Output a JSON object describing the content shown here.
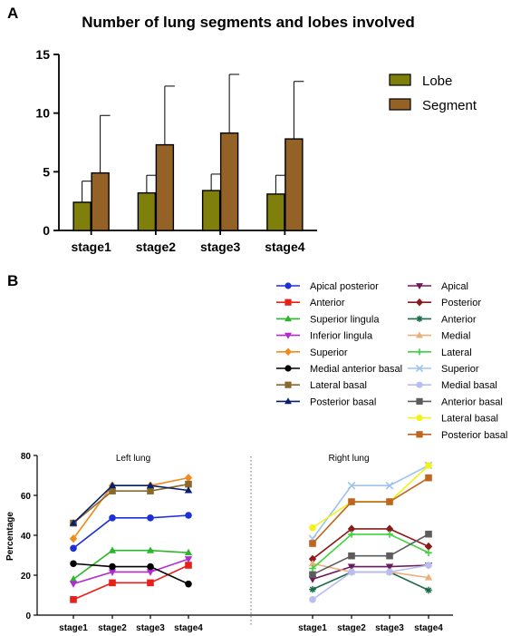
{
  "panel_labels": {
    "a": "A",
    "b": "B"
  },
  "chart_data": [
    {
      "type": "bar",
      "title": "Number of lung segments and lobes involved",
      "xlabel": "",
      "ylabel": "",
      "ylim": [
        0,
        15
      ],
      "yticks": [
        0,
        5,
        10,
        15
      ],
      "categories": [
        "stage1",
        "stage2",
        "stage3",
        "stage4"
      ],
      "legend_position": "right",
      "series": [
        {
          "name": "Lobe",
          "color": "#7f7f0b",
          "values": [
            2.4,
            3.2,
            3.4,
            3.1
          ],
          "error": [
            1.8,
            1.5,
            1.4,
            1.6
          ]
        },
        {
          "name": "Segment",
          "color": "#946127",
          "values": [
            4.9,
            7.3,
            8.3,
            7.8
          ],
          "error": [
            4.9,
            5.0,
            5.0,
            4.9
          ]
        }
      ]
    },
    {
      "type": "line",
      "ylabel": "Percentage",
      "ylim": [
        0,
        80
      ],
      "yticks": [
        0,
        20,
        40,
        60,
        80
      ],
      "grid": false,
      "legend_position": "top",
      "groups": [
        {
          "title": "Left lung",
          "categories": [
            "stage1",
            "stage2",
            "stage3",
            "stage4"
          ],
          "series": [
            {
              "name": "Apical posterior",
              "color": "#1f2fd8",
              "marker": "circle",
              "values": [
                33.5,
                48.7,
                48.7,
                50
              ]
            },
            {
              "name": "Anterior",
              "color": "#e8201a",
              "marker": "square",
              "values": [
                7.8,
                16.2,
                16.2,
                25
              ]
            },
            {
              "name": "Superior lingula",
              "color": "#2db62d",
              "marker": "triangle-up",
              "values": [
                18,
                32.4,
                32.4,
                31.3
              ]
            },
            {
              "name": "Inferior lingula",
              "color": "#b12bd1",
              "marker": "triangle-down",
              "values": [
                15.7,
                21.6,
                21.6,
                28.1
              ]
            },
            {
              "name": "Superior",
              "color": "#f28a1c",
              "marker": "diamond",
              "values": [
                38.3,
                64.9,
                64.9,
                68.8
              ]
            },
            {
              "name": "Medial anterior basal",
              "color": "#000000",
              "marker": "circle",
              "values": [
                25.8,
                24.3,
                24.3,
                15.6
              ]
            },
            {
              "name": "Lateral basal",
              "color": "#8a6a2c",
              "marker": "square",
              "values": [
                46.1,
                62.2,
                62.2,
                65.6
              ]
            },
            {
              "name": "Posterior basal",
              "color": "#0a1f6b",
              "marker": "triangle-up",
              "values": [
                46.1,
                64.9,
                64.9,
                62.5
              ]
            }
          ]
        },
        {
          "title": "Right lung",
          "categories": [
            "stage1",
            "stage2",
            "stage3",
            "stage4"
          ],
          "series": [
            {
              "name": "Apical",
              "color": "#6b1a5e",
              "marker": "triangle-down",
              "values": [
                18,
                24.3,
                24.3,
                25
              ]
            },
            {
              "name": "Posterior",
              "color": "#8c1a1a",
              "marker": "diamond",
              "values": [
                28.1,
                43.2,
                43.2,
                34.4
              ]
            },
            {
              "name": "Anterior",
              "color": "#1c6b4a",
              "marker": "star",
              "values": [
                12.9,
                21.6,
                21.6,
                12.5
              ]
            },
            {
              "name": "Medial",
              "color": "#e8b07a",
              "marker": "triangle-up",
              "values": [
                25.8,
                21.6,
                21.6,
                18.8
              ]
            },
            {
              "name": "Lateral",
              "color": "#3ed43e",
              "marker": "plus",
              "values": [
                23.4,
                40.5,
                40.5,
                31.3
              ]
            },
            {
              "name": "Superior",
              "color": "#9ec4ee",
              "marker": "cross",
              "values": [
                38.3,
                64.9,
                64.9,
                75
              ]
            },
            {
              "name": "Medial basal",
              "color": "#b9bdf2",
              "marker": "circle",
              "values": [
                7.8,
                21.6,
                21.6,
                25
              ]
            },
            {
              "name": "Anterior basal",
              "color": "#5c5c5c",
              "marker": "square",
              "values": [
                20.3,
                29.7,
                29.7,
                40.6
              ]
            },
            {
              "name": "Lateral basal",
              "color": "#f2f21a",
              "marker": "circle",
              "values": [
                43.8,
                56.8,
                56.8,
                75
              ]
            },
            {
              "name": "Posterior basal",
              "color": "#c0651d",
              "marker": "square",
              "values": [
                35.9,
                56.8,
                56.8,
                68.8
              ]
            }
          ]
        }
      ]
    }
  ]
}
